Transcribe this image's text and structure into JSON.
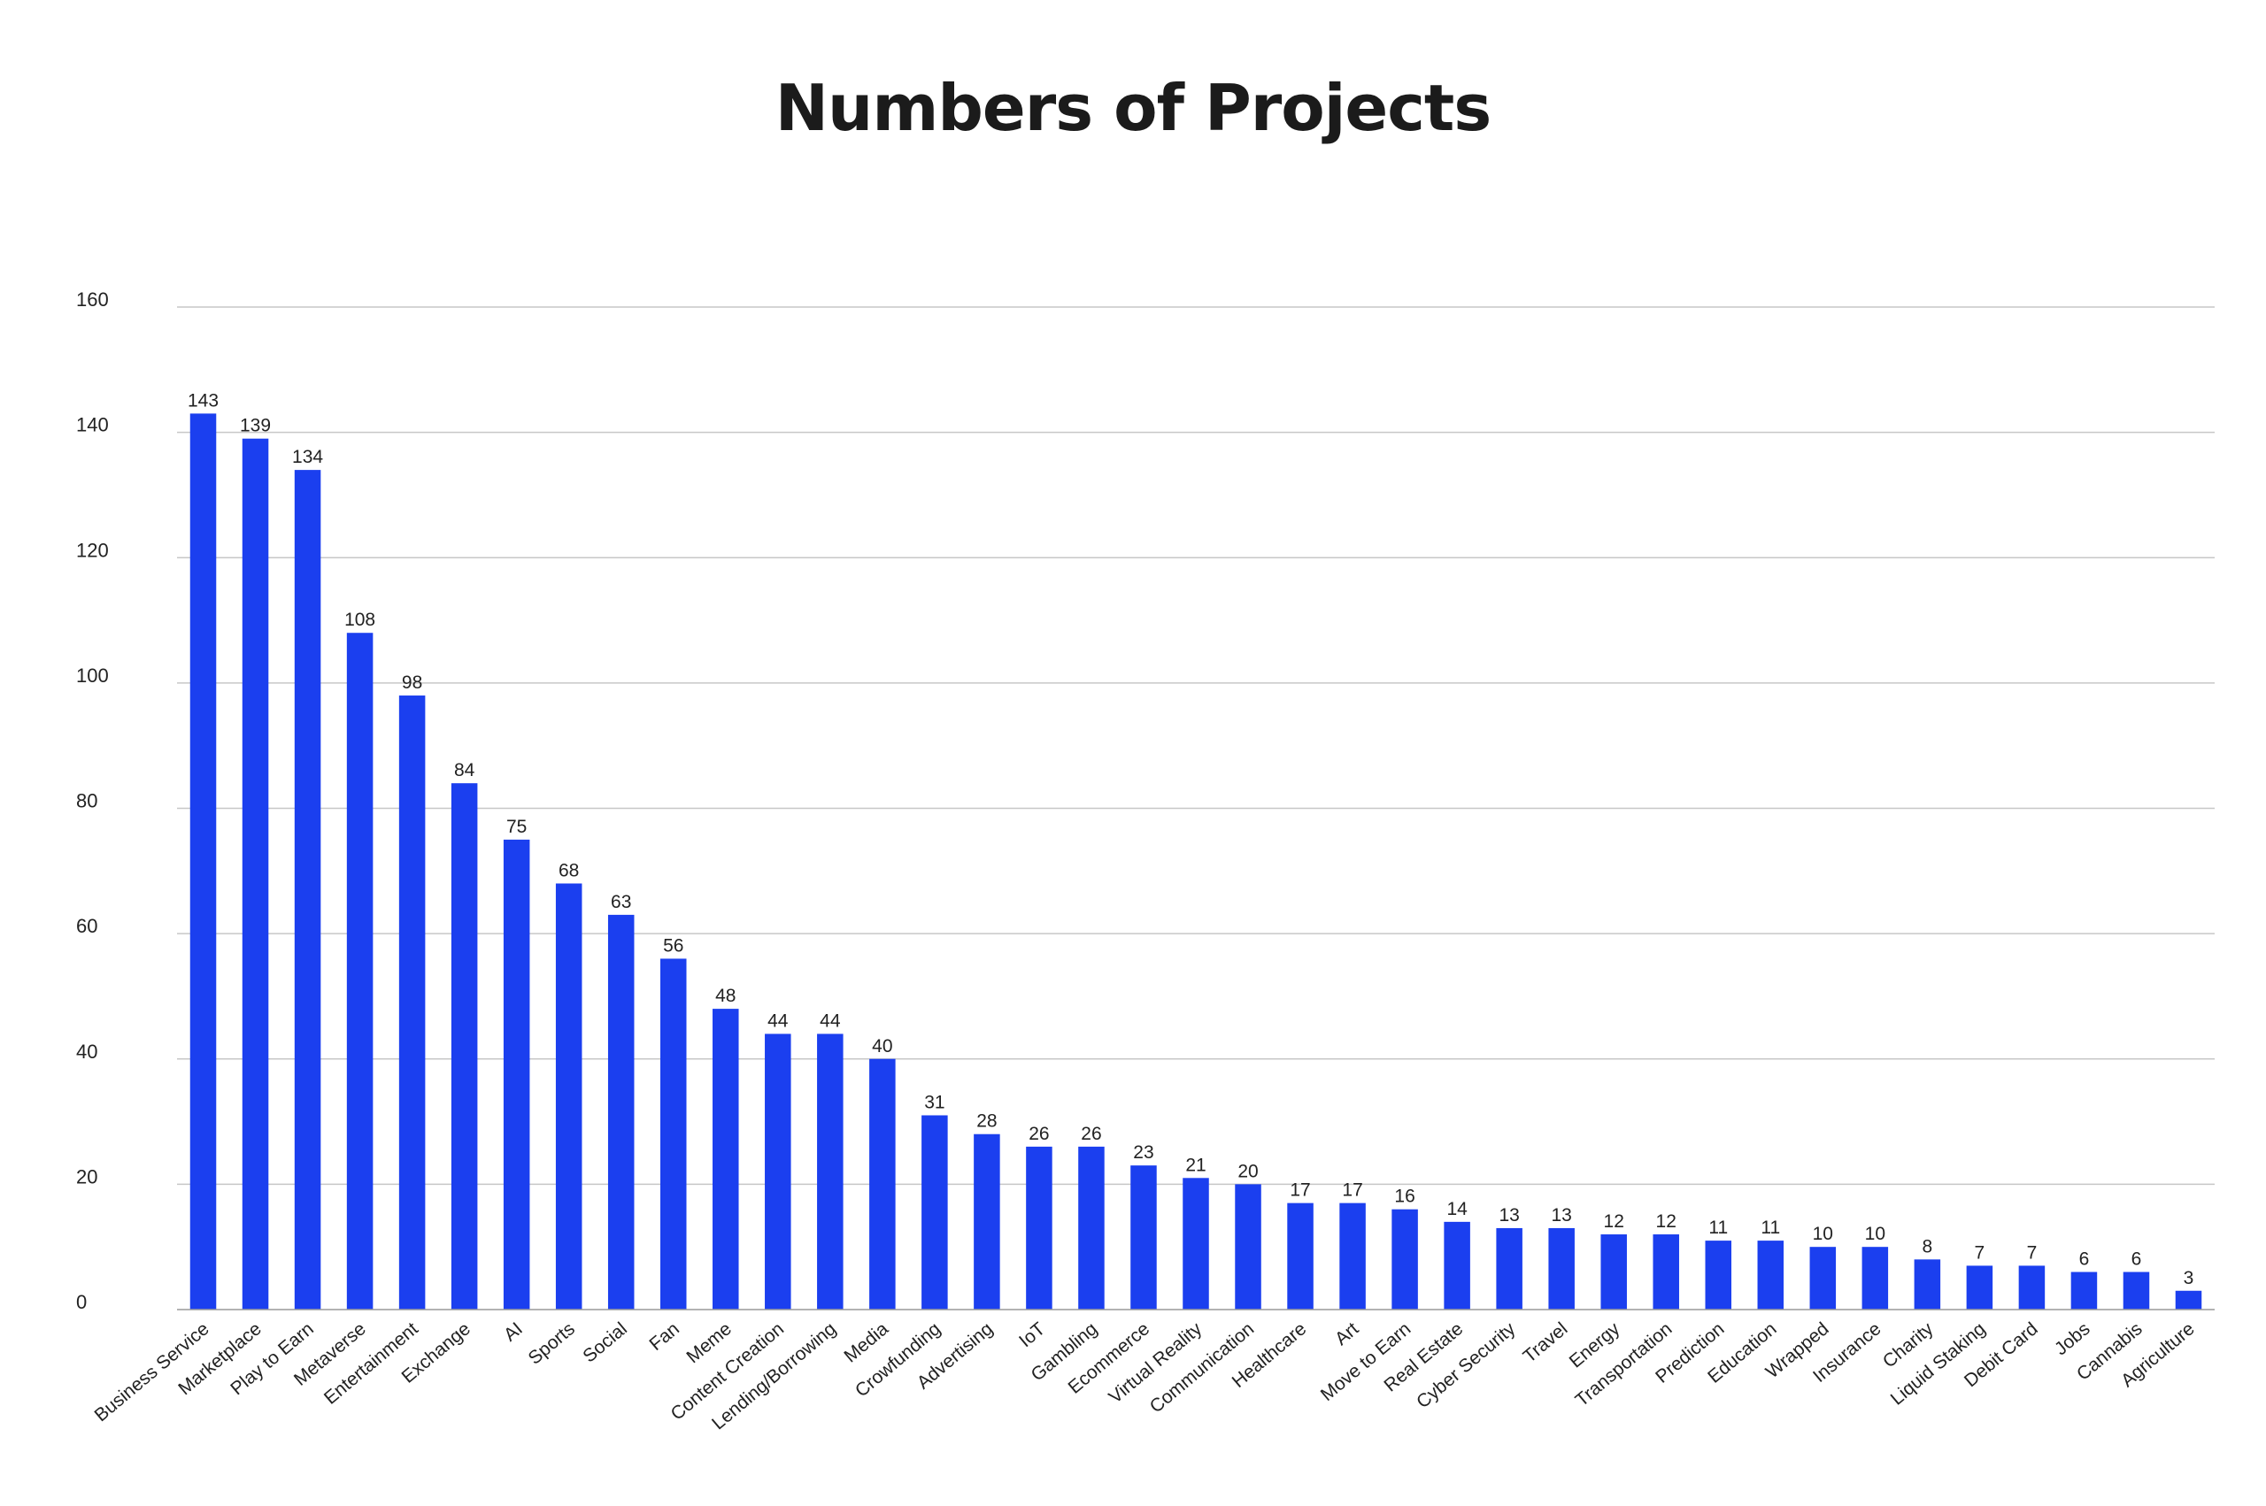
{
  "chart_data": {
    "type": "bar",
    "title": "Numbers of Projects",
    "xlabel": "",
    "ylabel": "",
    "ylim": [
      0,
      160
    ],
    "yticks": [
      0,
      20,
      40,
      60,
      80,
      100,
      120,
      140,
      160
    ],
    "grid": true,
    "legend": "none",
    "bar_color": "#1b3fef",
    "categories": [
      "Business Service",
      "Marketplace",
      "Play to Earn",
      "Metaverse",
      "Entertainment",
      "Exchange",
      "AI",
      "Sports",
      "Social",
      "Fan",
      "Meme",
      "Content Creation",
      "Lending/Borrowing",
      "Media",
      "Crowfunding",
      "Advertising",
      "IoT",
      "Gambling",
      "Ecommerce",
      "Virtual Reality",
      "Communication",
      "Healthcare",
      "Art",
      "Move to Earn",
      "Real Estate",
      "Cyber Security",
      "Travel",
      "Energy",
      "Transportation",
      "Prediction",
      "Education",
      "Wrapped",
      "Insurance",
      "Charity",
      "Liquid Staking",
      "Debit Card",
      "Jobs",
      "Cannabis",
      "Agriculture"
    ],
    "values": [
      143,
      139,
      134,
      108,
      98,
      84,
      75,
      68,
      63,
      56,
      48,
      44,
      44,
      40,
      31,
      28,
      26,
      26,
      23,
      21,
      20,
      17,
      17,
      16,
      14,
      13,
      13,
      12,
      12,
      11,
      11,
      10,
      10,
      8,
      7,
      7,
      6,
      6,
      3
    ]
  }
}
